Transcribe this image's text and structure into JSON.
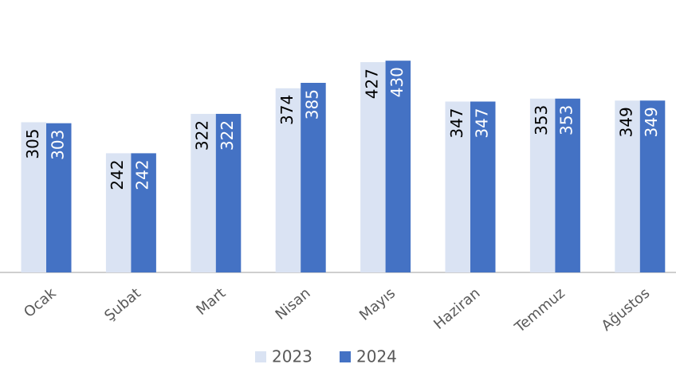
{
  "chart_data": {
    "type": "bar",
    "categories": [
      "Ocak",
      "Şubat",
      "Mart",
      "Nisan",
      "Mayıs",
      "Haziran",
      "Temmuz",
      "Ağustos"
    ],
    "series": [
      {
        "name": "2023",
        "color": "#dae3f3",
        "values": [
          305,
          242,
          322,
          374,
          427,
          347,
          353,
          349
        ]
      },
      {
        "name": "2024",
        "color": "#4472c4",
        "values": [
          303,
          242,
          322,
          385,
          430,
          347,
          353,
          349
        ]
      }
    ],
    "ylim": [
      0,
      550
    ],
    "legend": "bottom"
  }
}
